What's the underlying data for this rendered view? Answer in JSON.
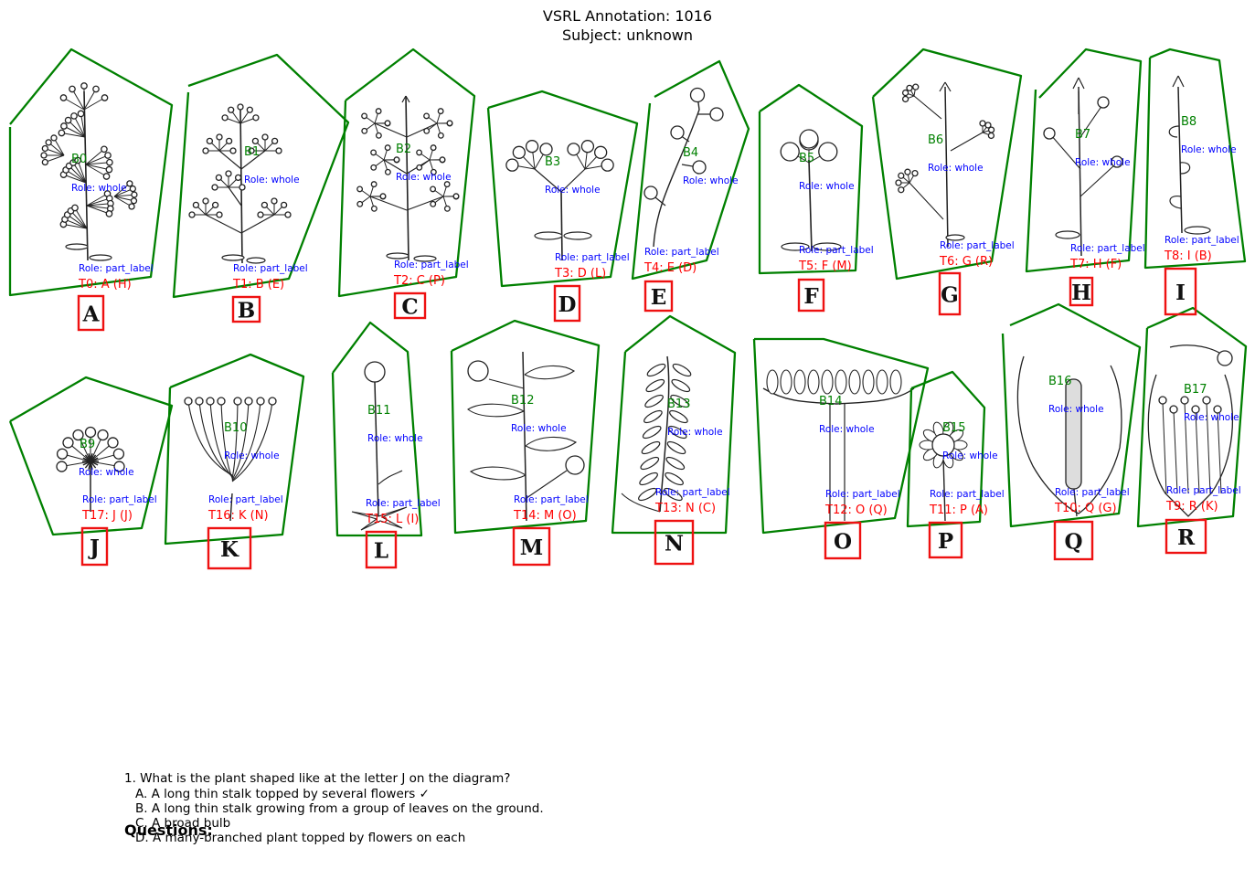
{
  "header": {
    "title_line1": "VSRL Annotation: 1016",
    "title_line2": "Subject: unknown"
  },
  "colors": {
    "polygon": "#008000",
    "box": "#ee1111",
    "blob_label": "#008000",
    "role_label": "#0000ff",
    "term_label": "#ff0000"
  },
  "role_whole": "Role: whole",
  "role_part": "Role: part_label",
  "panels": [
    {
      "letter": "A",
      "blob": "B0",
      "term": "T0: A (H)",
      "drawing": "many-branched-umbel-plant"
    },
    {
      "letter": "B",
      "blob": "B1",
      "term": "T1: B (E)",
      "drawing": "branched-plant"
    },
    {
      "letter": "C",
      "blob": "B2",
      "term": "T2: C (P)",
      "drawing": "dense-branched-plant"
    },
    {
      "letter": "D",
      "blob": "B3",
      "term": "T3: D (L)",
      "drawing": "umbel-plant"
    },
    {
      "letter": "E",
      "blob": "B4",
      "term": "T4: E (D)",
      "drawing": "raceme-plant"
    },
    {
      "letter": "F",
      "blob": "B5",
      "term": "T5: F (M)",
      "drawing": "simple-umbel-plant"
    },
    {
      "letter": "G",
      "blob": "B6",
      "term": "T6: G (R)",
      "drawing": "indeterminate-branched-plant"
    },
    {
      "letter": "H",
      "blob": "B7",
      "term": "T7: H (F)",
      "drawing": "indeterminate-raceme"
    },
    {
      "letter": "I",
      "blob": "B8",
      "term": "T8: I (B)",
      "drawing": "indeterminate-spike"
    },
    {
      "letter": "J",
      "blob": "B9",
      "term": "T17: J (J)",
      "drawing": "stalk-topped-by-flowers"
    },
    {
      "letter": "K",
      "blob": "B10",
      "term": "T16: K (N)",
      "drawing": "corymb"
    },
    {
      "letter": "L",
      "blob": "B11",
      "term": "T15: L (I)",
      "drawing": "scape-from-leaf-rosette"
    },
    {
      "letter": "M",
      "blob": "B12",
      "term": "T14: M (O)",
      "drawing": "leafy-stem"
    },
    {
      "letter": "N",
      "blob": "B13",
      "term": "T13: N (C)",
      "drawing": "leafy-spike"
    },
    {
      "letter": "O",
      "blob": "B14",
      "term": "T12: O (Q)",
      "drawing": "capitulum-section"
    },
    {
      "letter": "P",
      "blob": "B15",
      "term": "T11: P (A)",
      "drawing": "flower-head"
    },
    {
      "letter": "Q",
      "blob": "B16",
      "term": "T10: Q (G)",
      "drawing": "spadix-with-spathe"
    },
    {
      "letter": "R",
      "blob": "B17",
      "term": "T9: R (K)",
      "drawing": "fig-section"
    }
  ],
  "questions": {
    "heading": "Questions:",
    "q1": "1. What is the plant shaped like at the letter J on the diagram?",
    "options": [
      "A. A long thin stalk topped by several flowers ✓",
      "B. A long thin stalk growing from a group of leaves on the ground.",
      "C. A broad bulb",
      "D. A many-branched plant topped by flowers on each"
    ]
  }
}
